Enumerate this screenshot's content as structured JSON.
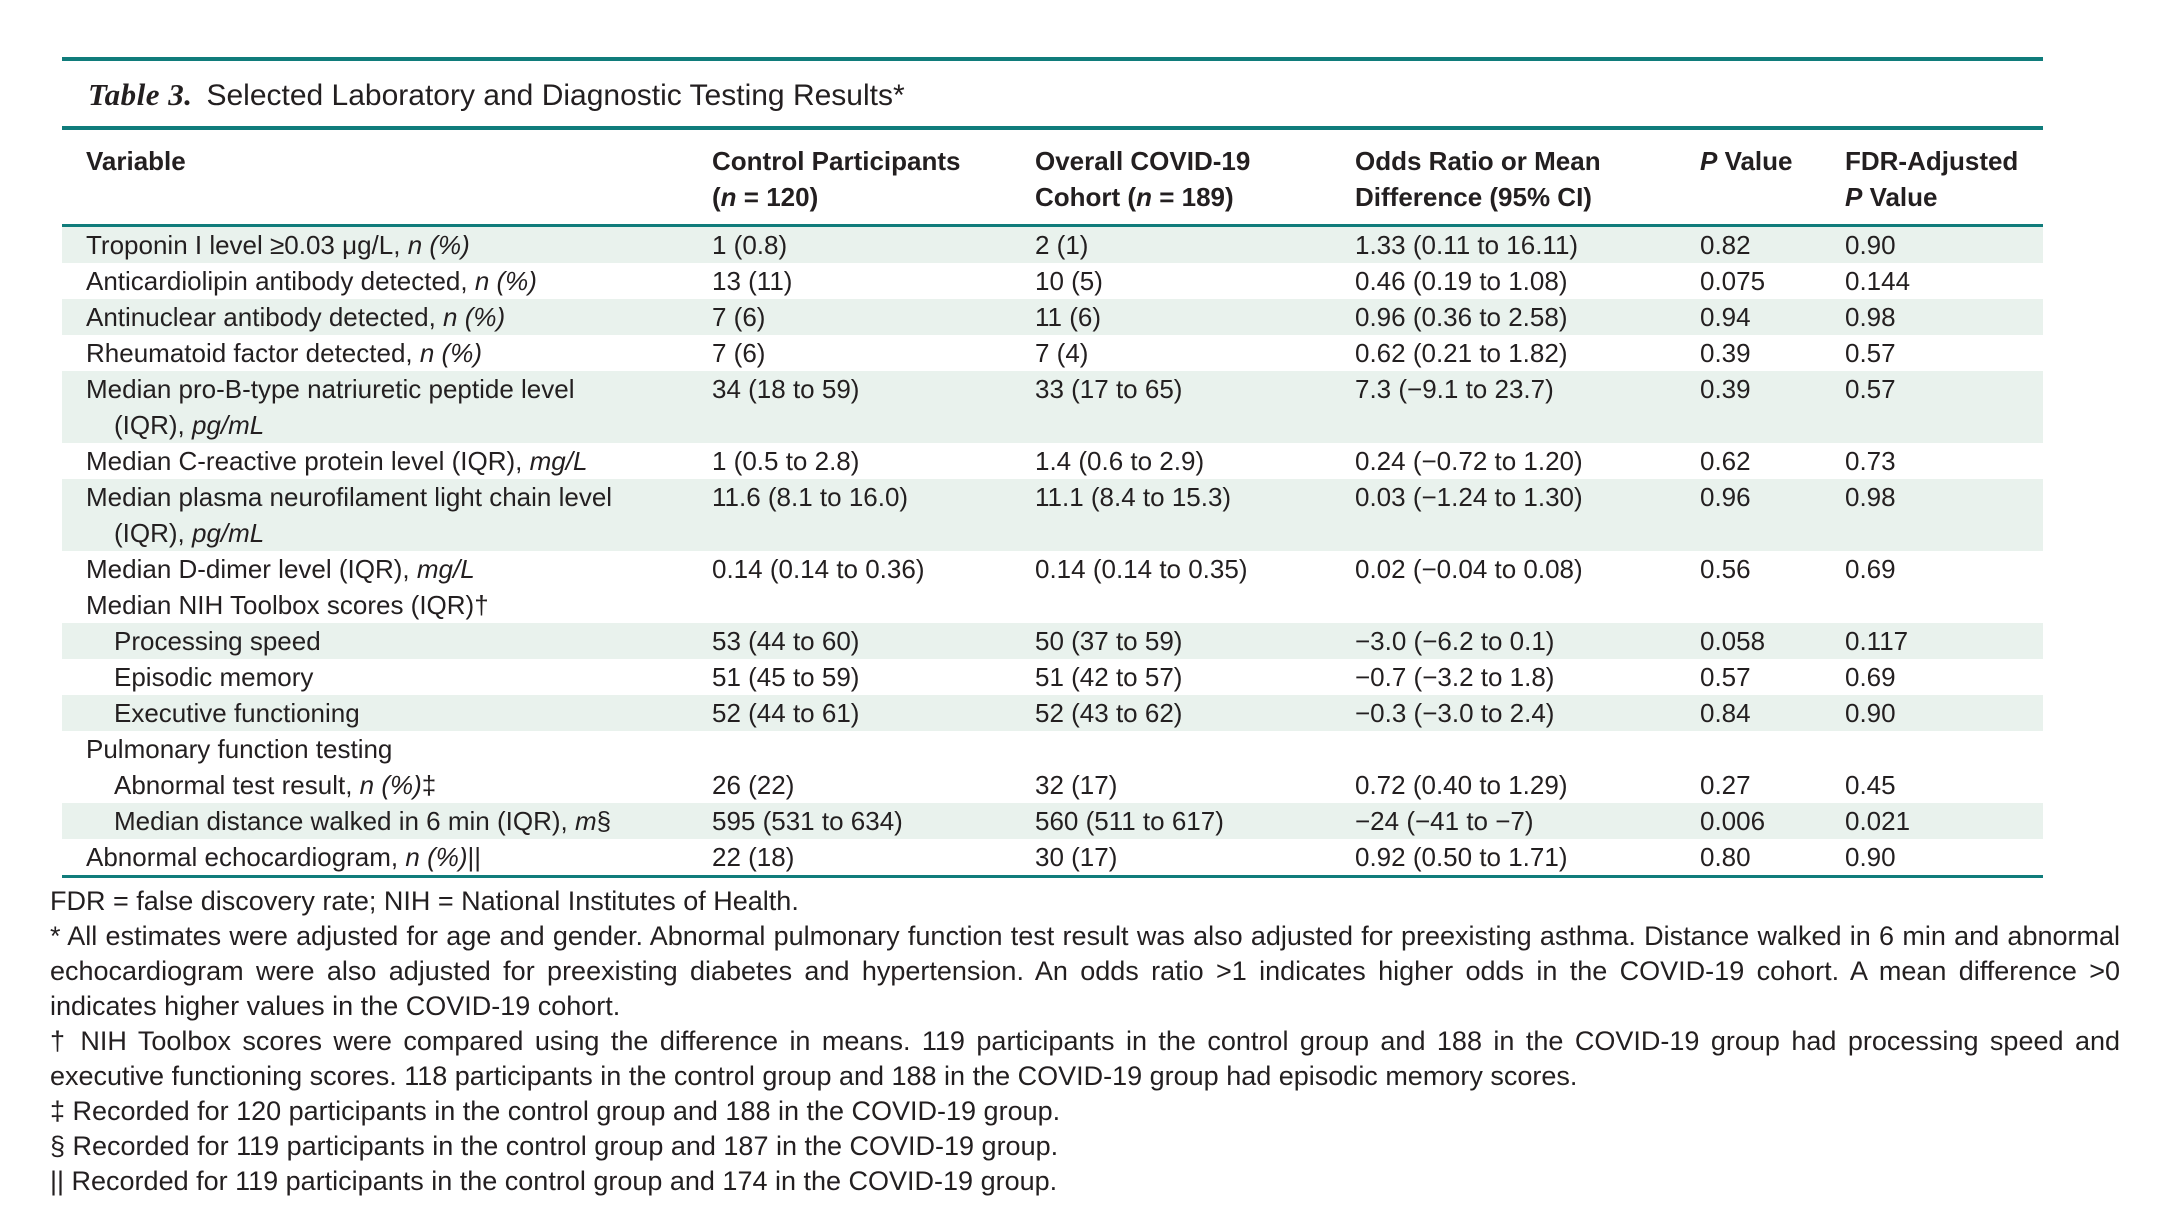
{
  "colors": {
    "teal_rule": "#107c7b",
    "row_shade": "#e9f2ed",
    "text": "#231f20"
  },
  "table": {
    "label": "Table 3.",
    "title": "Selected Laboratory and Diagnostic Testing Results*",
    "columns": [
      {
        "name": "variable",
        "lines": [
          [
            {
              "t": "Variable"
            }
          ]
        ]
      },
      {
        "name": "control",
        "lines": [
          [
            {
              "t": "Control Participants"
            }
          ],
          [
            {
              "t": "("
            },
            {
              "t": "n",
              "i": true
            },
            {
              "t": " = 120)"
            }
          ]
        ]
      },
      {
        "name": "covid-cohort",
        "lines": [
          [
            {
              "t": "Overall COVID-19"
            }
          ],
          [
            {
              "t": "Cohort ("
            },
            {
              "t": "n",
              "i": true
            },
            {
              "t": " = 189)"
            }
          ]
        ]
      },
      {
        "name": "odds-ratio",
        "lines": [
          [
            {
              "t": "Odds Ratio or Mean"
            }
          ],
          [
            {
              "t": "Difference (95% CI)"
            }
          ]
        ]
      },
      {
        "name": "p-value",
        "lines": [
          [
            {
              "t": "P",
              "i": true
            },
            {
              "t": " Value"
            }
          ]
        ]
      },
      {
        "name": "fdr-p-value",
        "lines": [
          [
            {
              "t": "FDR-Adjusted"
            }
          ],
          [
            {
              "t": "P",
              "i": true
            },
            {
              "t": " Value"
            }
          ]
        ]
      }
    ],
    "rows": [
      {
        "shaded": true,
        "indent": 0,
        "label": [
          [
            {
              "t": "Troponin I level ≥0.03 μg/L, "
            },
            {
              "t": "n (%)",
              "i": true
            }
          ]
        ],
        "cells": [
          "1 (0.8)",
          "2 (1)",
          "1.33 (0.11 to 16.11)",
          "0.82",
          "0.90"
        ]
      },
      {
        "shaded": false,
        "indent": 0,
        "label": [
          [
            {
              "t": "Anticardiolipin antibody detected, "
            },
            {
              "t": "n (%)",
              "i": true
            }
          ]
        ],
        "cells": [
          "13 (11)",
          "10 (5)",
          "0.46 (0.19 to 1.08)",
          "0.075",
          "0.144"
        ]
      },
      {
        "shaded": true,
        "indent": 0,
        "label": [
          [
            {
              "t": "Antinuclear antibody detected, "
            },
            {
              "t": "n (%)",
              "i": true
            }
          ]
        ],
        "cells": [
          "7 (6)",
          "11 (6)",
          "0.96 (0.36 to 2.58)",
          "0.94",
          "0.98"
        ]
      },
      {
        "shaded": false,
        "indent": 0,
        "label": [
          [
            {
              "t": "Rheumatoid factor detected, "
            },
            {
              "t": "n (%)",
              "i": true
            }
          ]
        ],
        "cells": [
          "7 (6)",
          "7 (4)",
          "0.62 (0.21 to 1.82)",
          "0.39",
          "0.57"
        ]
      },
      {
        "shaded": true,
        "indent": 0,
        "label": [
          [
            {
              "t": "Median pro-B-type natriuretic peptide level"
            }
          ],
          [
            {
              "t": "(IQR), "
            },
            {
              "t": "pg/mL",
              "i": true
            }
          ]
        ],
        "cells": [
          "34 (18 to 59)",
          "33 (17 to 65)",
          "7.3 (−9.1 to 23.7)",
          "0.39",
          "0.57"
        ]
      },
      {
        "shaded": false,
        "indent": 0,
        "label": [
          [
            {
              "t": "Median C-reactive protein level (IQR), "
            },
            {
              "t": "mg/L",
              "i": true
            }
          ]
        ],
        "cells": [
          "1 (0.5 to 2.8)",
          "1.4 (0.6 to 2.9)",
          "0.24 (−0.72 to 1.20)",
          "0.62",
          "0.73"
        ]
      },
      {
        "shaded": true,
        "indent": 0,
        "label": [
          [
            {
              "t": "Median plasma neurofilament light chain level"
            }
          ],
          [
            {
              "t": "(IQR), "
            },
            {
              "t": "pg/mL",
              "i": true
            }
          ]
        ],
        "cells": [
          "11.6 (8.1 to 16.0)",
          "11.1 (8.4 to 15.3)",
          "0.03 (−1.24 to 1.30)",
          "0.96",
          "0.98"
        ]
      },
      {
        "shaded": false,
        "indent": 0,
        "label": [
          [
            {
              "t": "Median D-dimer level (IQR), "
            },
            {
              "t": "mg/L",
              "i": true
            }
          ]
        ],
        "cells": [
          "0.14 (0.14 to 0.36)",
          "0.14 (0.14 to 0.35)",
          "0.02 (−0.04 to 0.08)",
          "0.56",
          "0.69"
        ]
      },
      {
        "shaded": false,
        "indent": 0,
        "section": true,
        "label": [
          [
            {
              "t": "Median NIH Toolbox scores (IQR)†"
            }
          ]
        ],
        "cells": [
          "",
          "",
          "",
          "",
          ""
        ]
      },
      {
        "shaded": true,
        "indent": 1,
        "label": [
          [
            {
              "t": "Processing speed"
            }
          ]
        ],
        "cells": [
          "53 (44 to 60)",
          "50 (37 to 59)",
          "−3.0 (−6.2 to 0.1)",
          "0.058",
          "0.117"
        ]
      },
      {
        "shaded": false,
        "indent": 1,
        "label": [
          [
            {
              "t": "Episodic memory"
            }
          ]
        ],
        "cells": [
          "51 (45 to 59)",
          "51 (42 to 57)",
          "−0.7 (−3.2 to 1.8)",
          "0.57",
          "0.69"
        ]
      },
      {
        "shaded": true,
        "indent": 1,
        "label": [
          [
            {
              "t": "Executive functioning"
            }
          ]
        ],
        "cells": [
          "52 (44 to 61)",
          "52 (43 to 62)",
          "−0.3 (−3.0 to 2.4)",
          "0.84",
          "0.90"
        ]
      },
      {
        "shaded": false,
        "indent": 0,
        "section": true,
        "label": [
          [
            {
              "t": "Pulmonary function testing"
            }
          ]
        ],
        "cells": [
          "",
          "",
          "",
          "",
          ""
        ]
      },
      {
        "shaded": false,
        "indent": 1,
        "label": [
          [
            {
              "t": "Abnormal test result, "
            },
            {
              "t": "n (%)",
              "i": true
            },
            {
              "t": "‡"
            }
          ]
        ],
        "cells": [
          "26 (22)",
          "32 (17)",
          "0.72 (0.40 to 1.29)",
          "0.27",
          "0.45"
        ]
      },
      {
        "shaded": true,
        "indent": 1,
        "label": [
          [
            {
              "t": "Median distance walked in 6 min (IQR), "
            },
            {
              "t": "m",
              "i": true
            },
            {
              "t": "§"
            }
          ]
        ],
        "cells": [
          "595 (531 to 634)",
          "560 (511 to 617)",
          "−24 (−41 to −7)",
          "0.006",
          "0.021"
        ]
      },
      {
        "shaded": false,
        "indent": 0,
        "label": [
          [
            {
              "t": "Abnormal echocardiogram, "
            },
            {
              "t": "n (%)",
              "i": true
            },
            {
              "t": "||"
            }
          ]
        ],
        "cells": [
          "22 (18)",
          "30 (17)",
          "0.92 (0.50 to 1.71)",
          "0.80",
          "0.90"
        ]
      }
    ]
  },
  "footnotes": [
    "FDR = false discovery rate; NIH = National Institutes of Health.",
    "* All estimates were adjusted for age and gender. Abnormal pulmonary function test result was also adjusted for preexisting asthma. Distance walked in 6 min and abnormal echocardiogram were also adjusted for preexisting diabetes and hypertension. An odds ratio >1 indicates higher odds in the COVID-19 cohort. A mean difference >0 indicates higher values in the COVID-19 cohort.",
    "† NIH Toolbox scores were compared using the difference in means. 119 participants in the control group and 188 in the COVID-19 group had processing speed and executive functioning scores. 118 participants in the control group and 188 in the COVID-19 group had episodic memory scores.",
    "‡ Recorded for 120 participants in the control group and 188 in the COVID-19 group.",
    "§ Recorded for 119 participants in the control group and 187 in the COVID-19 group.",
    "|| Recorded for 119 participants in the control group and 174 in the COVID-19 group."
  ]
}
